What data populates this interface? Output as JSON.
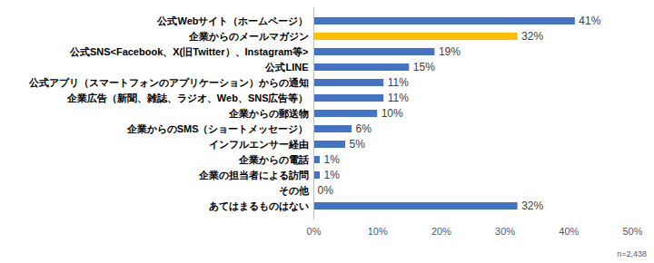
{
  "chart_data": {
    "type": "bar",
    "orientation": "horizontal",
    "caption": "n=2,438",
    "categories": [
      "公式Webサイト（ホームページ）",
      "企業からのメールマガジン",
      "公式SNS<Facebook、X(旧Twitter）、Instagram等>",
      "公式LINE",
      "公式アプリ（スマートフォンのアプリケーション）からの通知",
      "企業広告（新聞、雑誌、ラジオ、Web、SNS広告等）",
      "企業からの郵送物",
      "企業からのSMS（ショートメッセージ）",
      "インフルエンサー経由",
      "企業からの電話",
      "企業の担当者による訪問",
      "その他",
      "あてはまるものはない"
    ],
    "values": [
      41,
      32,
      19,
      15,
      11,
      11,
      10,
      6,
      5,
      1,
      1,
      0,
      32
    ],
    "value_labels": [
      "41%",
      "32%",
      "19%",
      "15%",
      "11%",
      "11%",
      "10%",
      "6%",
      "5%",
      "1%",
      "1%",
      "0%",
      "32%"
    ],
    "colors": [
      "#4472c4",
      "#ffc000",
      "#4472c4",
      "#4472c4",
      "#4472c4",
      "#4472c4",
      "#4472c4",
      "#4472c4",
      "#4472c4",
      "#4472c4",
      "#4472c4",
      "#4472c4",
      "#4472c4"
    ],
    "xlim": [
      0,
      50
    ],
    "xticks": [
      {
        "value": 0,
        "label": "0%"
      },
      {
        "value": 10,
        "label": "10%"
      },
      {
        "value": 20,
        "label": "20%"
      },
      {
        "value": 30,
        "label": "30%"
      },
      {
        "value": 40,
        "label": "40%"
      },
      {
        "value": 50,
        "label": "50%"
      }
    ],
    "grid": false,
    "data_labels": true
  }
}
